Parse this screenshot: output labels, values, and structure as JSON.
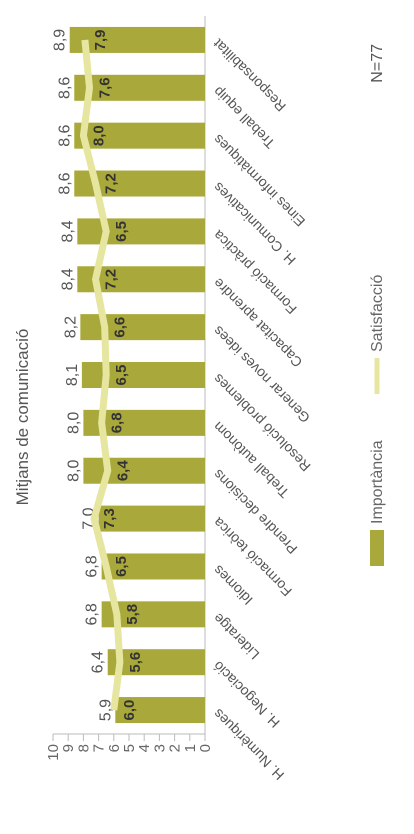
{
  "chart_data": {
    "type": "bar",
    "title": "Mitjans de comunicació",
    "categories": [
      "H. Numèriques",
      "H. Negociació",
      "Lideratge",
      "Idiomes",
      "Formació teòrica",
      "Prendre decisions",
      "Treball autònom",
      "Resolució problemes",
      "Generar noves idees",
      "Capacitat aprendre",
      "Formació pràctica",
      "H. Comunicatives",
      "Eines informàtiques",
      "Treball equip",
      "Responsabilitat"
    ],
    "series": [
      {
        "name": "Importància",
        "type": "bar",
        "color": "#a9a83a",
        "values": [
          5.9,
          6.4,
          6.8,
          6.8,
          7.0,
          8.0,
          8.0,
          8.1,
          8.2,
          8.4,
          8.4,
          8.6,
          8.6,
          8.6,
          8.9
        ],
        "labels": [
          "5,9",
          "6,4",
          "6,8",
          "6,8",
          "7,0",
          "8,0",
          "8,0",
          "8,1",
          "8,2",
          "8,4",
          "8,4",
          "8,6",
          "8,6",
          "8,6",
          "8,9"
        ]
      },
      {
        "name": "Satisfacció",
        "type": "line",
        "color": "#e6e6a0",
        "values": [
          6.0,
          5.6,
          5.8,
          6.5,
          7.3,
          6.4,
          6.8,
          6.5,
          6.6,
          7.2,
          6.5,
          7.2,
          8.0,
          7.6,
          7.9
        ],
        "labels": [
          "6,0",
          "5,6",
          "5,8",
          "6,5",
          "7,3",
          "6,4",
          "6,8",
          "6,5",
          "6,6",
          "7,2",
          "6,5",
          "7,2",
          "8,0",
          "7,6",
          "7,9"
        ]
      }
    ],
    "y_ticks": [
      "0",
      "1",
      "2",
      "3",
      "4",
      "5",
      "6",
      "7",
      "8",
      "9",
      "10"
    ],
    "ylim": [
      0,
      10
    ],
    "legend": {
      "position": "bottom",
      "items": [
        "Importància",
        "Satisfacció"
      ]
    },
    "annotation": "N=77",
    "grid": false
  }
}
